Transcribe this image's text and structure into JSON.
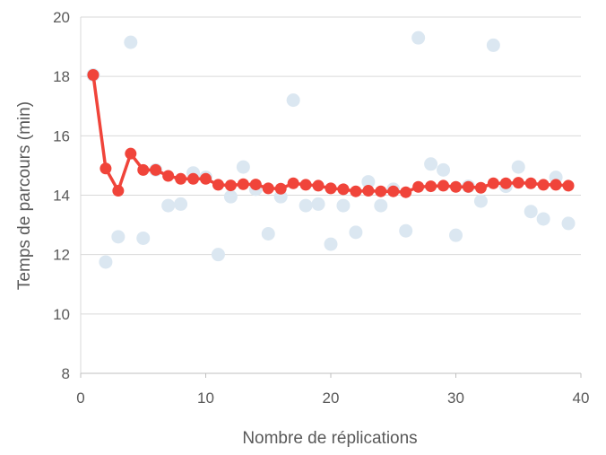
{
  "chart_data": {
    "type": "scatter",
    "xlabel": "Nombre de réplications",
    "ylabel": "Temps de parcours (min)",
    "xlim": [
      0,
      40
    ],
    "ylim": [
      8,
      20
    ],
    "xticks": [
      0,
      10,
      20,
      30,
      40
    ],
    "yticks": [
      8,
      10,
      12,
      14,
      16,
      18,
      20
    ],
    "grid": "horizontal",
    "legend": "none",
    "series": [
      {
        "kind": "scatter",
        "color": "#dbe7f1",
        "x": [
          1,
          2,
          3,
          4,
          5,
          6,
          7,
          8,
          9,
          10,
          11,
          12,
          13,
          14,
          15,
          16,
          17,
          18,
          19,
          20,
          21,
          22,
          23,
          24,
          25,
          26,
          27,
          28,
          29,
          30,
          31,
          32,
          33,
          34,
          35,
          36,
          37,
          38,
          39
        ],
        "y": [
          18.05,
          11.75,
          12.6,
          19.15,
          12.55,
          14.85,
          13.65,
          13.7,
          14.75,
          14.6,
          12.0,
          13.95,
          14.95,
          14.2,
          12.7,
          13.95,
          17.2,
          13.65,
          13.7,
          12.35,
          13.65,
          12.75,
          14.45,
          13.65,
          14.2,
          12.8,
          19.3,
          15.05,
          14.85,
          12.65,
          14.3,
          13.8,
          19.05,
          14.3,
          14.95,
          13.45,
          13.2,
          14.6,
          13.05
        ]
      },
      {
        "kind": "line-markers",
        "color": "#f0443a",
        "x": [
          1,
          2,
          3,
          4,
          5,
          6,
          7,
          8,
          9,
          10,
          11,
          12,
          13,
          14,
          15,
          16,
          17,
          18,
          19,
          20,
          21,
          22,
          23,
          24,
          25,
          26,
          27,
          28,
          29,
          30,
          31,
          32,
          33,
          34,
          35,
          36,
          37,
          38,
          39
        ],
        "y": [
          18.05,
          14.9,
          14.15,
          15.4,
          14.85,
          14.85,
          14.65,
          14.55,
          14.55,
          14.55,
          14.35,
          14.33,
          14.37,
          14.36,
          14.23,
          14.22,
          14.4,
          14.35,
          14.32,
          14.23,
          14.2,
          14.13,
          14.15,
          14.13,
          14.13,
          14.1,
          14.28,
          14.3,
          14.32,
          14.28,
          14.28,
          14.25,
          14.4,
          14.4,
          14.42,
          14.4,
          14.35,
          14.35,
          14.32
        ]
      }
    ]
  }
}
